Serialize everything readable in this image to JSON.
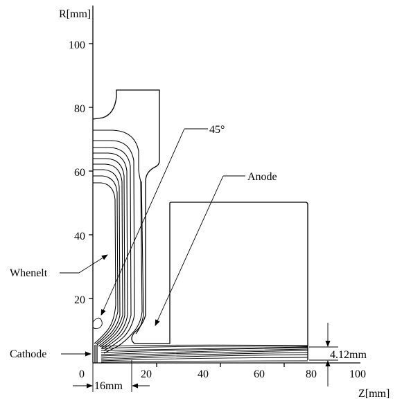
{
  "axes": {
    "y_label": "R[mm]",
    "x_label": "Z[mm]",
    "y_ticks": [
      "100",
      "80",
      "60",
      "40",
      "20"
    ],
    "x_ticks": [
      "0",
      "20",
      "40",
      "60",
      "80",
      "100"
    ]
  },
  "annotations": {
    "angle": "45°",
    "anode": "Anode",
    "whenelt": "Whenelt",
    "cathode": "Cathode",
    "gap": "16mm",
    "beam_radius": "4.12mm"
  }
}
